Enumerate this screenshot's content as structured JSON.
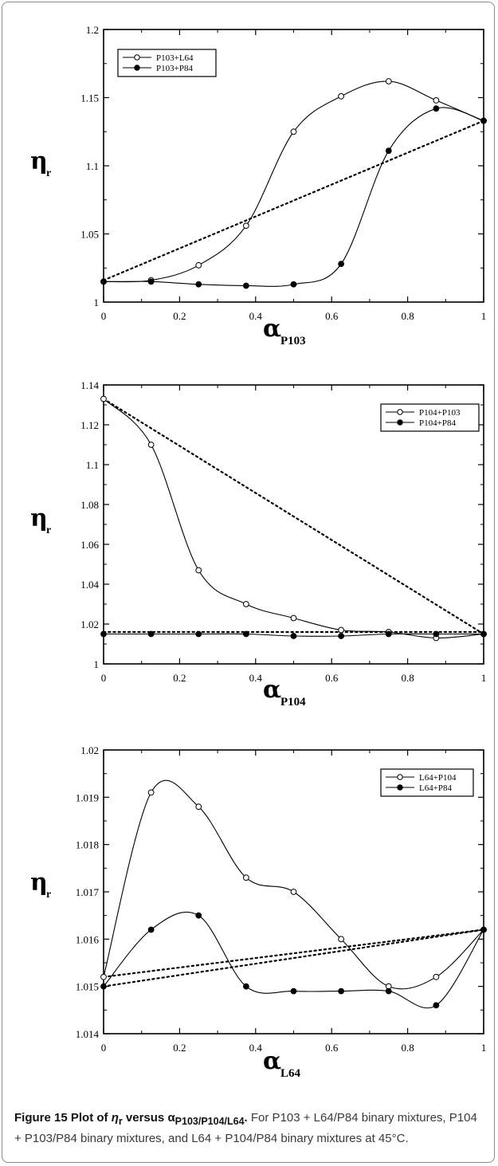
{
  "chart_data": [
    {
      "type": "line",
      "xlabel_symbol": "α",
      "xlabel_sub": "P103",
      "ylabel_symbol": "η",
      "ylabel_sub": "r",
      "xlim": [
        0,
        1
      ],
      "ylim": [
        1,
        1.2
      ],
      "xticks": [
        "0",
        "0.2",
        "0.4",
        "0.6",
        "0.8",
        "1"
      ],
      "yticks": [
        "1",
        "1.05",
        "1.1",
        "1.15",
        "1.2"
      ],
      "legend_position": "top-left",
      "series": [
        {
          "name": "P103+L64",
          "marker": "open-circle",
          "x": [
            0,
            0.125,
            0.25,
            0.375,
            0.5,
            0.625,
            0.75,
            0.875,
            1
          ],
          "y": [
            1.015,
            1.016,
            1.027,
            1.056,
            1.125,
            1.151,
            1.162,
            1.148,
            1.133
          ]
        },
        {
          "name": "P103+P84",
          "marker": "filled-circle",
          "x": [
            0,
            0.125,
            0.25,
            0.375,
            0.5,
            0.625,
            0.75,
            0.875,
            1
          ],
          "y": [
            1.015,
            1.015,
            1.013,
            1.012,
            1.013,
            1.028,
            1.111,
            1.142,
            1.133
          ]
        }
      ],
      "reference_lines": [
        {
          "x": [
            0,
            1
          ],
          "y": [
            1.016,
            1.133
          ]
        }
      ]
    },
    {
      "type": "line",
      "xlabel_symbol": "α",
      "xlabel_sub": "P104",
      "ylabel_symbol": "η",
      "ylabel_sub": "r",
      "xlim": [
        0,
        1
      ],
      "ylim": [
        1,
        1.14
      ],
      "xticks": [
        "0",
        "0.2",
        "0.4",
        "0.6",
        "0.8",
        "1"
      ],
      "yticks": [
        "1",
        "1.02",
        "1.04",
        "1.06",
        "1.08",
        "1.1",
        "1.12",
        "1.14"
      ],
      "legend_position": "top-right",
      "series": [
        {
          "name": "P104+P103",
          "marker": "open-circle",
          "x": [
            0,
            0.125,
            0.25,
            0.375,
            0.5,
            0.625,
            0.75,
            0.875,
            1
          ],
          "y": [
            1.133,
            1.11,
            1.047,
            1.03,
            1.023,
            1.017,
            1.016,
            1.013,
            1.015
          ]
        },
        {
          "name": "P104+P84",
          "marker": "filled-circle",
          "x": [
            0,
            0.125,
            0.25,
            0.375,
            0.5,
            0.625,
            0.75,
            0.875,
            1
          ],
          "y": [
            1.015,
            1.015,
            1.015,
            1.015,
            1.014,
            1.014,
            1.015,
            1.015,
            1.015
          ]
        }
      ],
      "reference_lines": [
        {
          "x": [
            0,
            1
          ],
          "y": [
            1.133,
            1.015
          ]
        },
        {
          "x": [
            0,
            1
          ],
          "y": [
            1.016,
            1.016
          ]
        }
      ]
    },
    {
      "type": "line",
      "xlabel_symbol": "α",
      "xlabel_sub": "L64",
      "ylabel_symbol": "η",
      "ylabel_sub": "r",
      "xlim": [
        0,
        1
      ],
      "ylim": [
        1.014,
        1.02
      ],
      "xticks": [
        "0",
        "0.2",
        "0.4",
        "0.6",
        "0.8",
        "1"
      ],
      "yticks": [
        "1.014",
        "1.015",
        "1.016",
        "1.017",
        "1.018",
        "1.019",
        "1.02"
      ],
      "legend_position": "top-right",
      "series": [
        {
          "name": "L64+P104",
          "marker": "open-circle",
          "x": [
            0,
            0.125,
            0.25,
            0.375,
            0.5,
            0.625,
            0.75,
            0.875,
            1
          ],
          "y": [
            1.0152,
            1.0191,
            1.0188,
            1.0173,
            1.017,
            1.016,
            1.015,
            1.0152,
            1.0162
          ]
        },
        {
          "name": "L64+P84",
          "marker": "filled-circle",
          "x": [
            0,
            0.125,
            0.25,
            0.375,
            0.5,
            0.625,
            0.75,
            0.875,
            1
          ],
          "y": [
            1.015,
            1.0162,
            1.0165,
            1.015,
            1.0149,
            1.0149,
            1.0149,
            1.0146,
            1.0162
          ]
        }
      ],
      "reference_lines": [
        {
          "x": [
            0,
            1
          ],
          "y": [
            1.0152,
            1.0162
          ]
        },
        {
          "x": [
            0,
            1
          ],
          "y": [
            1.015,
            1.0162
          ]
        }
      ]
    }
  ],
  "caption": {
    "label": "Figure 15",
    "title_plot_of": "Plot of",
    "title_eta": "η",
    "title_eta_sub": "r",
    "title_versus": "versus α",
    "title_alpha_sub": "P103/P104/L64",
    "title_end": ".",
    "text": "For P103 + L64/P84 binary mixtures, P104 + P103/P84 binary mixtures, and L64 + P104/P84 binary mixtures at 45°C."
  }
}
